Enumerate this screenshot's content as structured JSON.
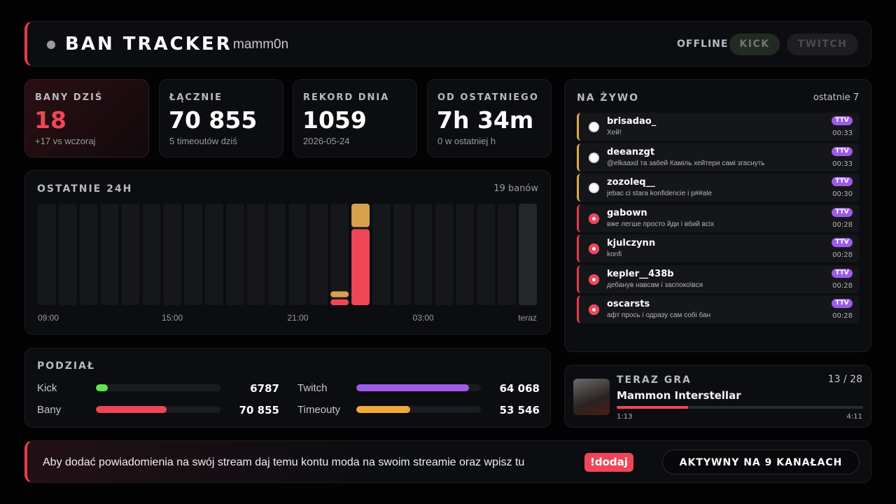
{
  "header": {
    "title": "BAN TRACKER",
    "user": "mamm0n",
    "status": "OFFLINE",
    "buttons": [
      "KICK",
      "TWITCH"
    ]
  },
  "stats": [
    {
      "label": "BANY DZIŚ",
      "value": "18",
      "sub": "+17 vs wczoraj"
    },
    {
      "label": "ŁĄCZNIE",
      "value": "70 855",
      "sub": "5 timeoutów dziś"
    },
    {
      "label": "REKORD DNIA",
      "value": "1059",
      "sub": "2026-05-24"
    },
    {
      "label": "OD OSTATNIEGO",
      "value": "7h 34m",
      "sub": "0 w ostatniej h"
    }
  ],
  "chart": {
    "title": "OSTATNIE 24H",
    "summary": "19 banów",
    "x_labels": [
      "09:00",
      null,
      null,
      null,
      null,
      null,
      "15:00",
      null,
      null,
      null,
      null,
      null,
      "21:00",
      null,
      null,
      null,
      null,
      null,
      "03:00",
      null,
      null,
      null,
      null,
      "teraz"
    ],
    "bans": [
      0,
      0,
      0,
      0,
      0,
      0,
      0,
      0,
      0,
      0,
      0,
      0,
      0,
      0,
      1,
      13,
      0,
      0,
      0,
      0,
      0,
      0,
      0,
      0
    ],
    "timeouts": [
      0,
      0,
      0,
      0,
      0,
      0,
      0,
      0,
      0,
      0,
      0,
      0,
      0,
      0,
      1,
      4,
      0,
      0,
      0,
      0,
      0,
      0,
      0,
      0
    ],
    "colors": {
      "bans": "#ef4657",
      "timeouts": "#d8a24a"
    }
  },
  "split": {
    "title": "PODZIAŁ",
    "pairs": [
      [
        {
          "name": "Kick",
          "value": 6787,
          "value_label": "6787",
          "color": "#5ee64a"
        },
        {
          "name": "Twitch",
          "value": 64068,
          "value_label": "64 068",
          "color": "#9c5ce6"
        }
      ],
      [
        {
          "name": "Bany",
          "value": 70855,
          "value_label": "70 855",
          "color": "#ef4657"
        },
        {
          "name": "Timeouty",
          "value": 53546,
          "value_label": "53 546",
          "color": "#f0a83e"
        }
      ]
    ]
  },
  "live": {
    "title": "NA ŻYWO",
    "summary": "ostatnie 7",
    "entries": [
      {
        "kind": "timeout",
        "user": "brisadao_",
        "message": "Хей!",
        "badge": "TTV",
        "time": "00:33"
      },
      {
        "kind": "timeout",
        "user": "deeanzgt",
        "message": "@elkaaxd та забей Каміль хейтери самі згаснуть",
        "badge": "TTV",
        "time": "00:33"
      },
      {
        "kind": "timeout",
        "user": "zozoleq__",
        "message": "jebac ci stara konfidencie i p##ale",
        "badge": "TTV",
        "time": "00:30"
      },
      {
        "kind": "ban",
        "user": "gabown",
        "message": "вже легше просто йди і вбий всіх",
        "badge": "TTV",
        "time": "00:28"
      },
      {
        "kind": "ban",
        "user": "kjulczynn",
        "message": "konfi",
        "badge": "TTV",
        "time": "00:28"
      },
      {
        "kind": "ban",
        "user": "kepler__438b",
        "message": "дебанув навсам і заспокоївся",
        "badge": "TTV",
        "time": "00:28"
      },
      {
        "kind": "ban",
        "user": "oscarsts",
        "message": "афт прось і одразу сам собі бан",
        "badge": "TTV",
        "time": "00:28"
      }
    ]
  },
  "now_playing": {
    "title": "TERAZ GRA",
    "position": "13 / 28",
    "track": "Mammon Interstellar",
    "elapsed": "1:13",
    "duration": "4:11"
  },
  "footer": {
    "text": "Aby dodać powiadomienia na swój stream daj temu kontu moda na swoim streamie oraz wpisz tu",
    "command": "!dodaj",
    "active": "AKTYWNY NA 9 KANAŁACH"
  }
}
